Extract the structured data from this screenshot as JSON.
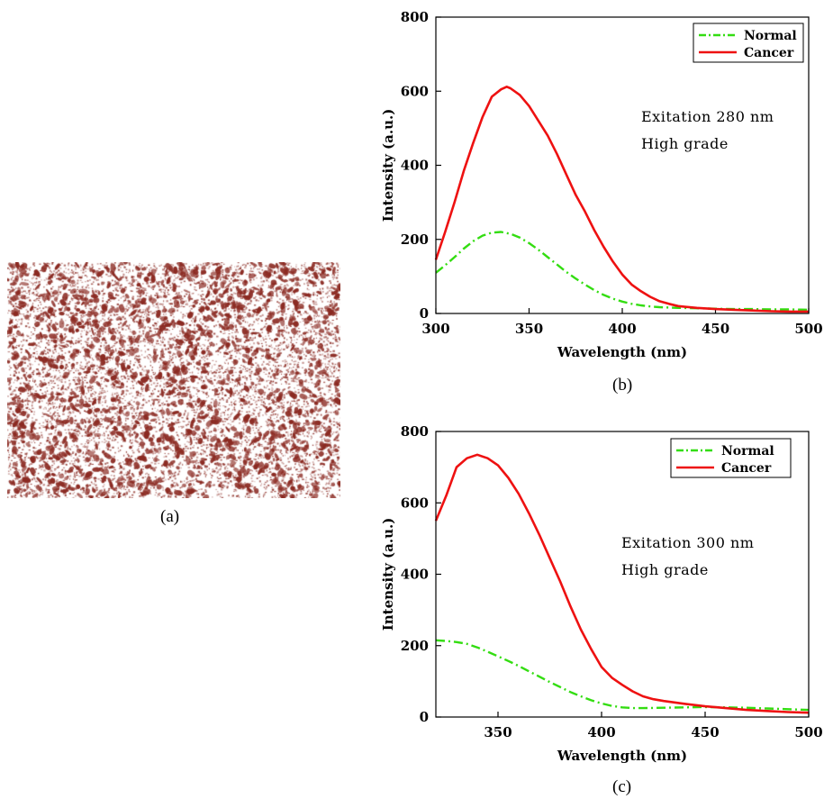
{
  "captions": {
    "a": "(a)",
    "b": "(b)",
    "c": "(c)"
  },
  "histology": {
    "ink_color": "#8b2a22",
    "background": "#ffffff"
  },
  "chart_data": [
    {
      "type": "line",
      "panel": "b",
      "xlabel": "Wavelength (nm)",
      "ylabel": "Intensity (a.u.)",
      "xlim": [
        300,
        500
      ],
      "ylim": [
        0,
        800
      ],
      "xticks": [
        300,
        350,
        400,
        450,
        500
      ],
      "yticks": [
        0,
        200,
        400,
        600,
        800
      ],
      "grid": false,
      "legend_position": "top-right",
      "annotations": [
        "Exitation 280 nm",
        "High grade"
      ],
      "series": [
        {
          "name": "Normal",
          "color": "#33dd11",
          "style": "dash-dot",
          "points": [
            [
              300,
              110
            ],
            [
              305,
              130
            ],
            [
              310,
              152
            ],
            [
              315,
              175
            ],
            [
              320,
              195
            ],
            [
              325,
              210
            ],
            [
              330,
              218
            ],
            [
              335,
              220
            ],
            [
              340,
              215
            ],
            [
              345,
              205
            ],
            [
              350,
              190
            ],
            [
              355,
              172
            ],
            [
              360,
              152
            ],
            [
              365,
              132
            ],
            [
              370,
              112
            ],
            [
              375,
              94
            ],
            [
              380,
              78
            ],
            [
              385,
              63
            ],
            [
              390,
              50
            ],
            [
              395,
              40
            ],
            [
              400,
              32
            ],
            [
              405,
              26
            ],
            [
              410,
              22
            ],
            [
              415,
              19
            ],
            [
              420,
              17
            ],
            [
              430,
              15
            ],
            [
              440,
              14
            ],
            [
              450,
              13
            ],
            [
              460,
              12
            ],
            [
              470,
              12
            ],
            [
              480,
              11
            ],
            [
              490,
              11
            ],
            [
              500,
              10
            ]
          ]
        },
        {
          "name": "Cancer",
          "color": "#ee1111",
          "style": "solid",
          "points": [
            [
              300,
              145
            ],
            [
              305,
              220
            ],
            [
              310,
              300
            ],
            [
              315,
              385
            ],
            [
              320,
              460
            ],
            [
              325,
              530
            ],
            [
              330,
              585
            ],
            [
              335,
              605
            ],
            [
              338,
              612
            ],
            [
              340,
              608
            ],
            [
              345,
              590
            ],
            [
              350,
              560
            ],
            [
              355,
              520
            ],
            [
              360,
              480
            ],
            [
              365,
              430
            ],
            [
              370,
              375
            ],
            [
              375,
              320
            ],
            [
              380,
              275
            ],
            [
              385,
              225
            ],
            [
              390,
              180
            ],
            [
              395,
              140
            ],
            [
              400,
              105
            ],
            [
              405,
              78
            ],
            [
              410,
              60
            ],
            [
              415,
              45
            ],
            [
              420,
              33
            ],
            [
              425,
              26
            ],
            [
              430,
              20
            ],
            [
              440,
              15
            ],
            [
              450,
              12
            ],
            [
              460,
              10
            ],
            [
              470,
              8
            ],
            [
              480,
              6
            ],
            [
              490,
              5
            ],
            [
              500,
              5
            ]
          ]
        }
      ]
    },
    {
      "type": "line",
      "panel": "c",
      "xlabel": "Wavelength (nm)",
      "ylabel": "Intensity (a.u.)",
      "xlim": [
        320,
        500
      ],
      "ylim": [
        0,
        800
      ],
      "xticks": [
        350,
        400,
        450,
        500
      ],
      "yticks": [
        0,
        200,
        400,
        600,
        800
      ],
      "grid": false,
      "legend_position": "top-right",
      "annotations": [
        "Exitation 300 nm",
        "High grade"
      ],
      "series": [
        {
          "name": "Normal",
          "color": "#33dd11",
          "style": "dash-dot",
          "points": [
            [
              320,
              215
            ],
            [
              325,
              213
            ],
            [
              330,
              210
            ],
            [
              335,
              205
            ],
            [
              340,
              195
            ],
            [
              345,
              183
            ],
            [
              350,
              170
            ],
            [
              355,
              157
            ],
            [
              360,
              143
            ],
            [
              365,
              128
            ],
            [
              370,
              113
            ],
            [
              375,
              98
            ],
            [
              380,
              84
            ],
            [
              385,
              70
            ],
            [
              390,
              58
            ],
            [
              395,
              47
            ],
            [
              400,
              38
            ],
            [
              405,
              31
            ],
            [
              410,
              27
            ],
            [
              415,
              25
            ],
            [
              420,
              25
            ],
            [
              430,
              26
            ],
            [
              440,
              27
            ],
            [
              450,
              28
            ],
            [
              460,
              27
            ],
            [
              470,
              26
            ],
            [
              480,
              24
            ],
            [
              490,
              22
            ],
            [
              500,
              20
            ]
          ]
        },
        {
          "name": "Cancer",
          "color": "#ee1111",
          "style": "solid",
          "points": [
            [
              320,
              550
            ],
            [
              325,
              620
            ],
            [
              330,
              700
            ],
            [
              335,
              725
            ],
            [
              340,
              735
            ],
            [
              345,
              725
            ],
            [
              350,
              705
            ],
            [
              355,
              670
            ],
            [
              360,
              625
            ],
            [
              365,
              570
            ],
            [
              370,
              510
            ],
            [
              375,
              445
            ],
            [
              380,
              380
            ],
            [
              385,
              310
            ],
            [
              390,
              245
            ],
            [
              395,
              190
            ],
            [
              400,
              140
            ],
            [
              405,
              110
            ],
            [
              410,
              90
            ],
            [
              415,
              72
            ],
            [
              420,
              58
            ],
            [
              425,
              50
            ],
            [
              430,
              45
            ],
            [
              440,
              37
            ],
            [
              450,
              30
            ],
            [
              460,
              25
            ],
            [
              470,
              20
            ],
            [
              480,
              17
            ],
            [
              490,
              14
            ],
            [
              500,
              12
            ]
          ]
        }
      ]
    }
  ]
}
